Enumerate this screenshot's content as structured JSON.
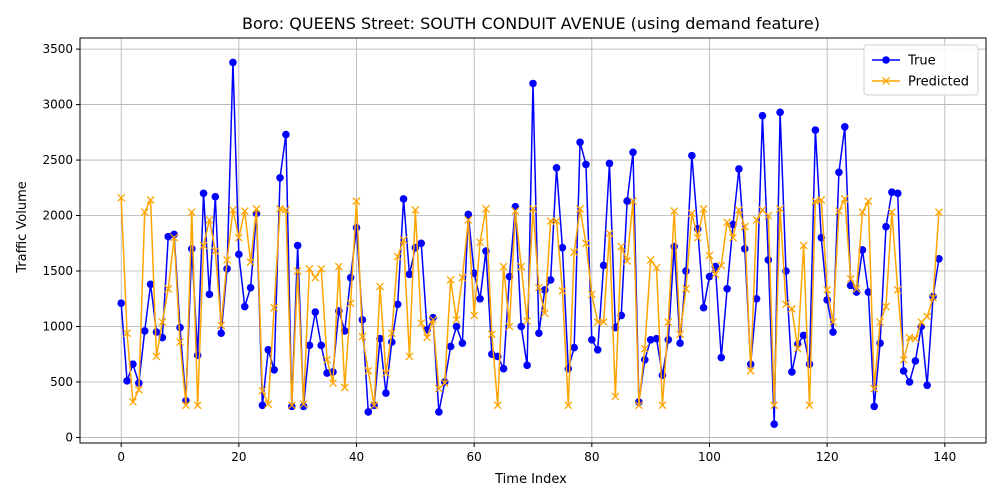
{
  "chart_data": {
    "type": "line",
    "title": "Boro: QUEENS Street: SOUTH CONDUIT AVENUE (using demand feature)",
    "xlabel": "Time Index",
    "ylabel": "Traffic Volume",
    "xlim": [
      -7,
      147
    ],
    "ylim": [
      -50,
      3600
    ],
    "x_ticks": [
      0,
      20,
      40,
      60,
      80,
      100,
      120,
      140
    ],
    "y_ticks": [
      0,
      500,
      1000,
      1500,
      2000,
      2500,
      3000,
      3500
    ],
    "grid": true,
    "legend_position": "top-right",
    "series": [
      {
        "name": "True",
        "color": "#0000ff",
        "marker": "circle",
        "values": [
          1210,
          510,
          660,
          490,
          960,
          1380,
          950,
          900,
          1810,
          1830,
          990,
          330,
          1700,
          740,
          2200,
          1290,
          2170,
          940,
          1520,
          3380,
          1650,
          1180,
          1350,
          2020,
          290,
          790,
          610,
          2340,
          2730,
          280,
          1730,
          280,
          830,
          1130,
          830,
          580,
          590,
          1140,
          960,
          1440,
          1890,
          1060,
          230,
          290,
          890,
          400,
          860,
          1200,
          2150,
          1470,
          1710,
          1750,
          970,
          1080,
          230,
          500,
          820,
          1000,
          850,
          2010,
          1480,
          1250,
          1680,
          750,
          730,
          620,
          1450,
          2080,
          1000,
          650,
          3190,
          940,
          1330,
          1420,
          2430,
          1710,
          620,
          810,
          2660,
          2460,
          880,
          790,
          1550,
          2470,
          990,
          1100,
          2130,
          2570,
          320,
          700,
          880,
          890,
          560,
          880,
          1720,
          850,
          1500,
          2540,
          1880,
          1170,
          1450,
          1540,
          720,
          1340,
          1920,
          2420,
          1700,
          660,
          1250,
          2900,
          1600,
          120,
          2930,
          1500,
          590,
          840,
          920,
          660,
          2770,
          1800,
          1240,
          950,
          2390,
          2800,
          1370,
          1310,
          1690,
          1310,
          280,
          850,
          1900,
          2210,
          2200,
          600,
          500,
          690,
          1000,
          470,
          1270,
          1610
        ]
      },
      {
        "name": "Predicted",
        "color": "#ffa500",
        "marker": "x",
        "values": [
          2160,
          940,
          320,
          430,
          2030,
          2140,
          730,
          1040,
          1340,
          1800,
          860,
          290,
          2030,
          290,
          1730,
          1960,
          1680,
          1010,
          1600,
          2050,
          1800,
          2040,
          1580,
          2060,
          420,
          300,
          1170,
          2060,
          2050,
          290,
          1500,
          300,
          1520,
          1440,
          1520,
          700,
          490,
          1540,
          450,
          1210,
          2130,
          910,
          600,
          290,
          1360,
          580,
          940,
          1630,
          1780,
          730,
          2050,
          1030,
          900,
          1060,
          440,
          490,
          1420,
          1060,
          1440,
          1960,
          1100,
          1760,
          2060,
          930,
          290,
          1540,
          1000,
          2040,
          1540,
          1050,
          2060,
          1350,
          1120,
          1950,
          1950,
          1320,
          290,
          1670,
          2060,
          1750,
          1290,
          1040,
          1040,
          1840,
          370,
          1720,
          1590,
          2130,
          290,
          800,
          1600,
          1530,
          290,
          1040,
          2040,
          930,
          1340,
          2020,
          1800,
          2060,
          1640,
          1470,
          1550,
          1940,
          1800,
          2050,
          1900,
          600,
          1960,
          2050,
          2000,
          290,
          2060,
          1200,
          1160,
          800,
          1730,
          290,
          2130,
          2140,
          1330,
          1040,
          2040,
          2150,
          1430,
          1340,
          2030,
          2130,
          440,
          1040,
          1180,
          2030,
          1330,
          700,
          900,
          890,
          1040,
          1090,
          1260,
          2030
        ]
      }
    ]
  }
}
